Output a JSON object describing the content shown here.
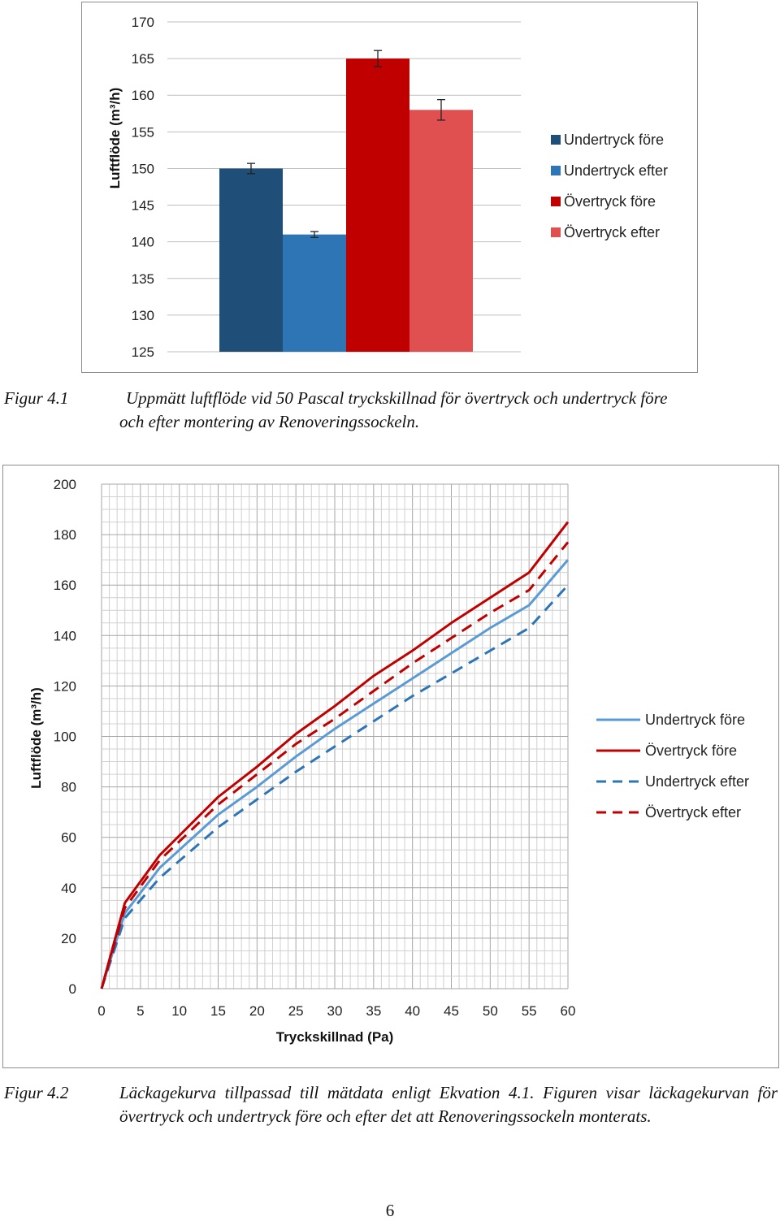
{
  "chart_data": [
    {
      "type": "bar",
      "title": "",
      "ylabel": "Luftflöde (m³/h)",
      "xlabel": "",
      "ylim": [
        125,
        170
      ],
      "yticks": [
        125,
        130,
        135,
        140,
        145,
        150,
        155,
        160,
        165,
        170
      ],
      "legend_position": "right",
      "grid": true,
      "series": [
        {
          "name": "Undertryck före",
          "value": 150,
          "error": 0.7,
          "color": "#1f4e79"
        },
        {
          "name": "Undertryck efter",
          "value": 141,
          "error": 0.4,
          "color": "#2e75b6"
        },
        {
          "name": "Övertryck före",
          "value": 165,
          "error": 1.1,
          "color": "#c00000"
        },
        {
          "name": "Övertryck efter",
          "value": 158,
          "error": 1.4,
          "color": "#e05050"
        }
      ]
    },
    {
      "type": "line",
      "title": "",
      "xlabel": "Tryckskillnad (Pa)",
      "ylabel": "Luftflöde (m³/h)",
      "xlim": [
        0,
        60
      ],
      "ylim": [
        0,
        200
      ],
      "xticks": [
        0,
        5,
        10,
        15,
        20,
        25,
        30,
        35,
        40,
        45,
        50,
        55,
        60
      ],
      "yticks": [
        0,
        20,
        40,
        60,
        80,
        100,
        120,
        140,
        160,
        180,
        200
      ],
      "x_minor_step": 1,
      "y_minor_step": 5,
      "grid": true,
      "legend_position": "right",
      "series": [
        {
          "name": "Undertryck före",
          "color": "#5b9bd5",
          "dash": false,
          "x": [
            0,
            3,
            7.5,
            15,
            20,
            25,
            30,
            35,
            40,
            45,
            50,
            55,
            60
          ],
          "y": [
            0,
            30,
            48,
            69,
            80,
            92,
            103,
            113,
            123,
            133,
            143,
            152,
            170
          ]
        },
        {
          "name": "Övertryck före",
          "color": "#c00000",
          "dash": false,
          "x": [
            0,
            3,
            7.5,
            15,
            20,
            25,
            30,
            35,
            40,
            45,
            50,
            55,
            60
          ],
          "y": [
            0,
            34,
            53,
            76,
            88,
            101,
            112,
            124,
            134,
            145,
            155,
            165,
            185
          ]
        },
        {
          "name": "Undertryck efter",
          "color": "#2e75b6",
          "dash": true,
          "x": [
            0,
            3,
            7.5,
            15,
            20,
            25,
            30,
            35,
            40,
            45,
            50,
            55,
            60
          ],
          "y": [
            0,
            28,
            44,
            64,
            75,
            86,
            96,
            106,
            116,
            125,
            134,
            143,
            160
          ]
        },
        {
          "name": "Övertryck efter",
          "color": "#c00000",
          "dash": true,
          "x": [
            0,
            3,
            7.5,
            15,
            20,
            25,
            30,
            35,
            40,
            45,
            50,
            55,
            60
          ],
          "y": [
            0,
            32,
            51,
            73,
            85,
            97,
            107,
            118,
            129,
            139,
            149,
            158,
            177
          ]
        }
      ]
    }
  ],
  "captions": {
    "fig1_label": "Figur 4.1",
    "fig1_line1": "Uppmätt luftflöde vid 50 Pascal tryckskillnad för övertryck och undertryck före",
    "fig1_line2": "och efter montering av Renoveringssockeln.",
    "fig2_label": "Figur 4.2",
    "fig2_text": "Läckagekurva tillpassad till mätdata enligt Ekvation 4.1. Figuren visar läckagekurvan för övertryck och undertryck före och efter det att Renoveringssockeln monterats."
  },
  "page_number": "6"
}
